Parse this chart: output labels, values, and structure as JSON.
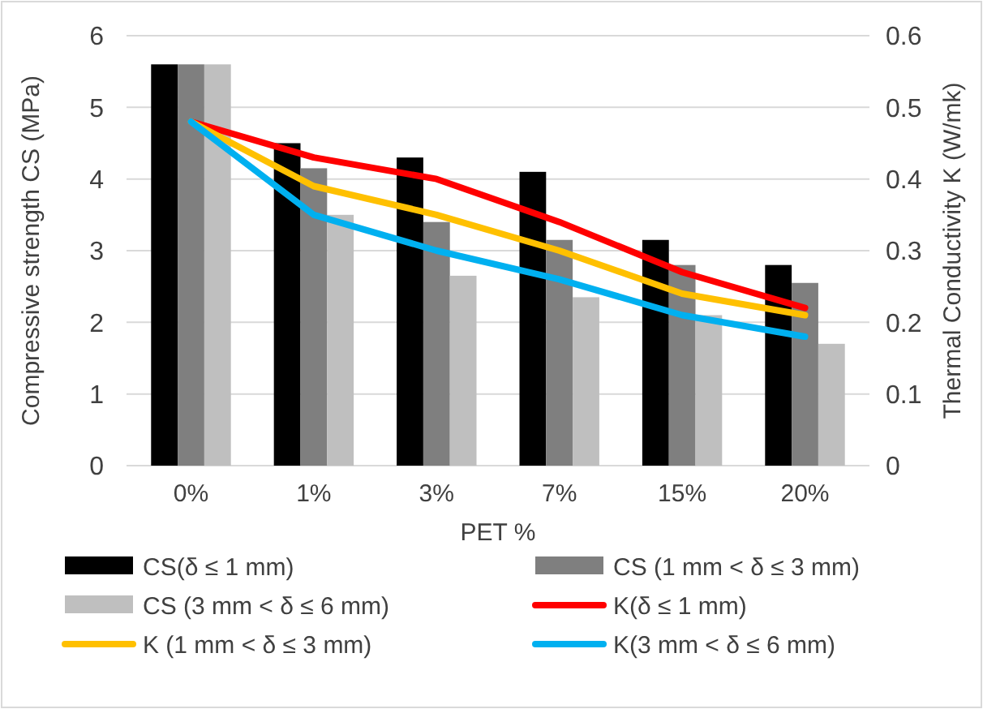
{
  "chart_data": {
    "type": "bar",
    "xlabel": "PET %",
    "ylabel": "Compressive strength CS (MPa)",
    "y2label": "Thermal Conductivity K (W/mk)",
    "categories": [
      "0%",
      "1%",
      "3%",
      "7%",
      "15%",
      "20%"
    ],
    "series": [
      {
        "name": "CS(δ ≤ 1 mm)",
        "color": "#000000",
        "values": [
          5.6,
          4.5,
          4.3,
          4.1,
          3.15,
          2.8
        ]
      },
      {
        "name": "CS (1 mm < δ ≤ 3 mm)",
        "color": "#7f7f7f",
        "values": [
          5.6,
          4.15,
          3.4,
          3.15,
          2.8,
          2.55
        ]
      },
      {
        "name": "CS (3 mm < δ ≤ 6 mm)",
        "color": "#bfbfbf",
        "values": [
          5.6,
          3.5,
          2.65,
          2.35,
          2.1,
          1.7
        ]
      },
      {
        "name": "K(δ ≤ 1 mm)",
        "type": "line",
        "axis": "y2",
        "color": "#ff0000",
        "values": [
          0.48,
          0.43,
          0.4,
          0.34,
          0.27,
          0.22
        ]
      },
      {
        "name": "K (1 mm < δ ≤ 3 mm)",
        "type": "line",
        "axis": "y2",
        "color": "#ffc000",
        "values": [
          0.48,
          0.39,
          0.35,
          0.3,
          0.24,
          0.21
        ]
      },
      {
        "name": "K(3 mm < δ ≤ 6 mm)",
        "type": "line",
        "axis": "y2",
        "color": "#00b0f0",
        "values": [
          0.48,
          0.35,
          0.3,
          0.26,
          0.21,
          0.18
        ]
      }
    ],
    "ylim": [
      0,
      6
    ],
    "yticks": [
      0,
      1,
      2,
      3,
      4,
      5,
      6
    ],
    "y2lim": [
      0,
      0.6
    ],
    "y2ticks": [
      0,
      0.1,
      0.2,
      0.3,
      0.4,
      0.5,
      0.6
    ],
    "grid": "y",
    "legend": "bottom"
  }
}
